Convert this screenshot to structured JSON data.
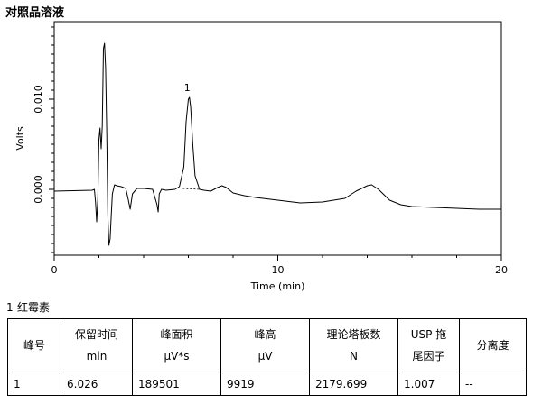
{
  "page": {
    "title": "对照品溶液"
  },
  "chart_data": {
    "type": "line",
    "title": "",
    "xlabel": "Time (min)",
    "ylabel": "Volts",
    "xlim": [
      0,
      20
    ],
    "ylim": [
      -0.0073,
      0.0186
    ],
    "x_ticks": [
      0,
      10,
      20
    ],
    "y_ticks": [
      0.0,
      0.01
    ],
    "y_tick_labels": [
      "0.000",
      "0.010"
    ],
    "grid": false,
    "legend": "none",
    "peak_labels": [
      {
        "label": "1",
        "x": 6.03,
        "y": 0.0102
      }
    ],
    "series": [
      {
        "x": [
          0,
          1.7,
          1.8,
          1.85,
          1.9,
          1.95,
          2.0,
          2.05,
          2.1,
          2.15,
          2.2,
          2.25,
          2.3,
          2.35,
          2.4,
          2.45,
          2.5,
          2.55,
          2.6,
          2.7,
          2.8,
          3.0,
          3.2,
          3.3,
          3.4,
          3.5,
          3.7,
          4.0,
          4.4,
          4.6,
          4.65,
          4.7,
          4.8,
          5.0,
          5.4,
          5.6,
          5.8,
          5.9,
          6.0,
          6.05,
          6.1,
          6.2,
          6.3,
          6.5,
          6.7,
          7.0,
          7.3,
          7.5,
          7.7,
          8.0,
          8.5,
          9.0,
          10.0,
          11.0,
          12.0,
          13.0,
          13.5,
          14.0,
          14.2,
          14.5,
          15.0,
          15.5,
          16.0,
          17.0,
          18.0,
          19.0,
          20.0
        ],
        "y": [
          -0.0002,
          -0.0001,
          0.0,
          -0.0015,
          -0.0036,
          -0.001,
          0.0055,
          0.0068,
          0.0045,
          0.007,
          0.0156,
          0.0162,
          0.0135,
          0.006,
          -0.003,
          -0.0062,
          -0.0055,
          -0.003,
          -0.0005,
          0.0005,
          0.0004,
          0.0003,
          0.0001,
          -0.001,
          -0.0022,
          -0.0005,
          0.0001,
          0.0001,
          0.0,
          -0.0017,
          -0.0025,
          -0.0005,
          0.0,
          -0.0001,
          0.0,
          0.0003,
          0.0025,
          0.0075,
          0.01,
          0.0102,
          0.0092,
          0.005,
          0.0015,
          0.0,
          -0.0001,
          -0.0002,
          0.0002,
          0.0004,
          0.0002,
          -0.0004,
          -0.0007,
          -0.0009,
          -0.0012,
          -0.0015,
          -0.0014,
          -0.001,
          -0.0002,
          0.0004,
          0.0005,
          0.0,
          -0.0012,
          -0.0017,
          -0.0019,
          -0.002,
          -0.0021,
          -0.0022,
          -0.0022
        ]
      }
    ]
  },
  "results": {
    "caption": "1-红霉素",
    "columns": [
      {
        "line1": "峰号",
        "line2": ""
      },
      {
        "line1": "保留时间",
        "line2": "min"
      },
      {
        "line1": "峰面积",
        "line2": "μV*s"
      },
      {
        "line1": "峰高",
        "line2": "μV"
      },
      {
        "line1": "理论塔板数",
        "line2": "N"
      },
      {
        "line1": "USP 拖",
        "line2": "尾因子"
      },
      {
        "line1": "分离度",
        "line2": ""
      }
    ],
    "rows": [
      [
        "1",
        "6.026",
        "189501",
        "9919",
        "2179.699",
        "1.007",
        "--"
      ]
    ]
  }
}
